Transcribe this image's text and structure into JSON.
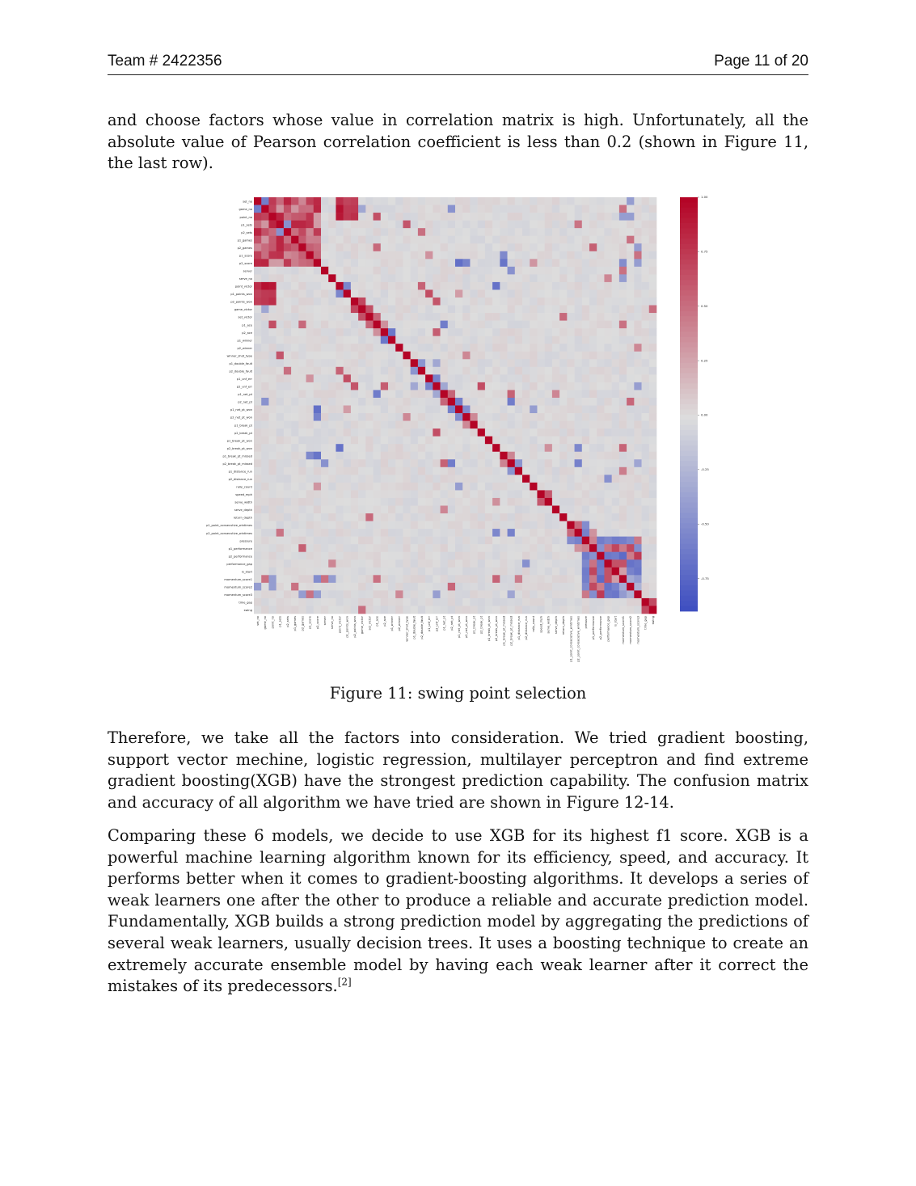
{
  "header": {
    "team": "Team # 2422356",
    "page": "Page 11 of 20"
  },
  "paragraphs": {
    "p1": "and choose factors whose value in correlation matrix is high. Unfortunately, all the absolute value of Pearson correlation coefficient is less than 0.2 (shown in Figure 11, the last row).",
    "p2": "Therefore, we take all the factors into consideration. We tried gradient boosting, support vector mechine, logistic regression, multilayer perceptron and find extreme gradient boosting(XGB) have the strongest prediction capability. The confusion matrix and accuracy of all algorithm we have tried are shown in Figure 12-14.",
    "p3": "Comparing these 6 models, we decide to use XGB for its highest f1 score. XGB is a powerful machine learning algorithm known for its efficiency, speed, and accuracy. It performs better when it comes to gradient-boosting algorithms. It develops a series of weak learners one after the other to produce a reliable and accurate prediction model. Fundamentally, XGB builds a strong prediction model by aggregating the predictions of several weak learners, usually decision trees. It uses a boosting technique to create an extremely accurate ensemble model by having each weak learner after it correct the mistakes of its predecessors.",
    "p3_ref": "[2]"
  },
  "figure": {
    "caption": "Figure 11: swing point selection"
  },
  "chart_data": {
    "type": "heatmap",
    "variables": [
      "set_no",
      "game_no",
      "point_no",
      "p1_sets",
      "p2_sets",
      "p1_games",
      "p2_games",
      "p1_score",
      "p2_score",
      "server",
      "serve_no",
      "point_victor",
      "p1_points_won",
      "p2_points_won",
      "game_victor",
      "set_victor",
      "p1_ace",
      "p2_ace",
      "p1_winner",
      "p2_winner",
      "winner_shot_type",
      "p1_double_fault",
      "p2_double_fault",
      "p1_unf_err",
      "p2_unf_err",
      "p1_net_pt",
      "p2_net_pt",
      "p1_net_pt_won",
      "p2_net_pt_won",
      "p1_break_pt",
      "p2_break_pt",
      "p1_break_pt_won",
      "p2_break_pt_won",
      "p1_break_pt_missed",
      "p2_break_pt_missed",
      "p1_distance_run",
      "p2_distance_run",
      "rally_count",
      "speed_mph",
      "serve_width",
      "serve_depth",
      "return_depth",
      "p1_point_consecutive_wintimes",
      "p2_point_consecutive_wintimes",
      "pressure",
      "p1_performance",
      "p2_performance",
      "performance_gap",
      "is_start",
      "momentum_score1",
      "momentum_score2",
      "momentum_score3",
      "time_gap",
      "swing"
    ],
    "colorbar_ticks": [
      1.0,
      0.75,
      0.5,
      0.25,
      0.0,
      -0.25,
      -0.5,
      -0.75
    ],
    "colorbar_range": [
      -0.9,
      1.0
    ],
    "colormap": "coolwarm",
    "diagonal": 1.0
  },
  "colors": {
    "cold": "#3b4cc0",
    "neutral": "#dddddd",
    "warm": "#b40426"
  }
}
